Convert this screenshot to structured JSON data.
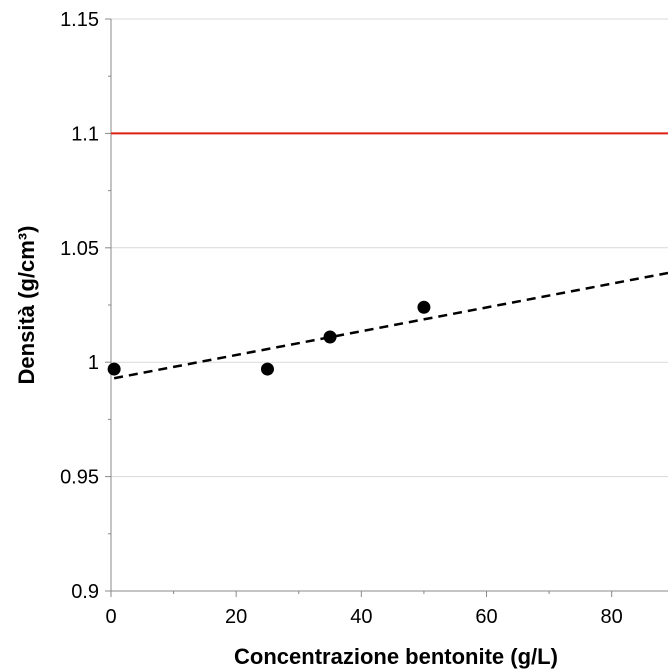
{
  "chart_data": {
    "type": "scatter",
    "title": "",
    "xlabel": "Concentrazione bentonite (g/L)",
    "ylabel": "Densità (g/cm³)",
    "xlim": [
      0,
      89
    ],
    "ylim": [
      0.9,
      1.15
    ],
    "x_ticks": [
      {
        "value": 0,
        "label": "0"
      },
      {
        "value": 20,
        "label": "20"
      },
      {
        "value": 40,
        "label": "40"
      },
      {
        "value": 60,
        "label": "60"
      },
      {
        "value": 80,
        "label": "80"
      }
    ],
    "y_ticks": [
      {
        "value": 0.9,
        "label": "0.9"
      },
      {
        "value": 0.95,
        "label": "0.95"
      },
      {
        "value": 1.0,
        "label": "1"
      },
      {
        "value": 1.05,
        "label": "1.05"
      },
      {
        "value": 1.1,
        "label": "1.1"
      },
      {
        "value": 1.15,
        "label": "1.15"
      }
    ],
    "y_minor_ticks": [
      0.925,
      0.975,
      1.025,
      1.075,
      1.125
    ],
    "x_minor_ticks": [
      10,
      30,
      50,
      70
    ],
    "grid": {
      "horizontal": true,
      "vertical": false
    },
    "legend": "none",
    "series": [
      {
        "type": "scatter",
        "x": [
          0.5,
          25,
          35,
          50
        ],
        "y": [
          0.997,
          0.997,
          1.011,
          1.024
        ],
        "color": "#000000"
      },
      {
        "type": "trendline",
        "style": "dashed",
        "x": [
          0.5,
          89
        ],
        "y": [
          0.993,
          1.039
        ],
        "color": "#000000"
      },
      {
        "type": "reference-line",
        "style": "solid",
        "y": 1.1,
        "color": "#dd1f14"
      }
    ]
  }
}
